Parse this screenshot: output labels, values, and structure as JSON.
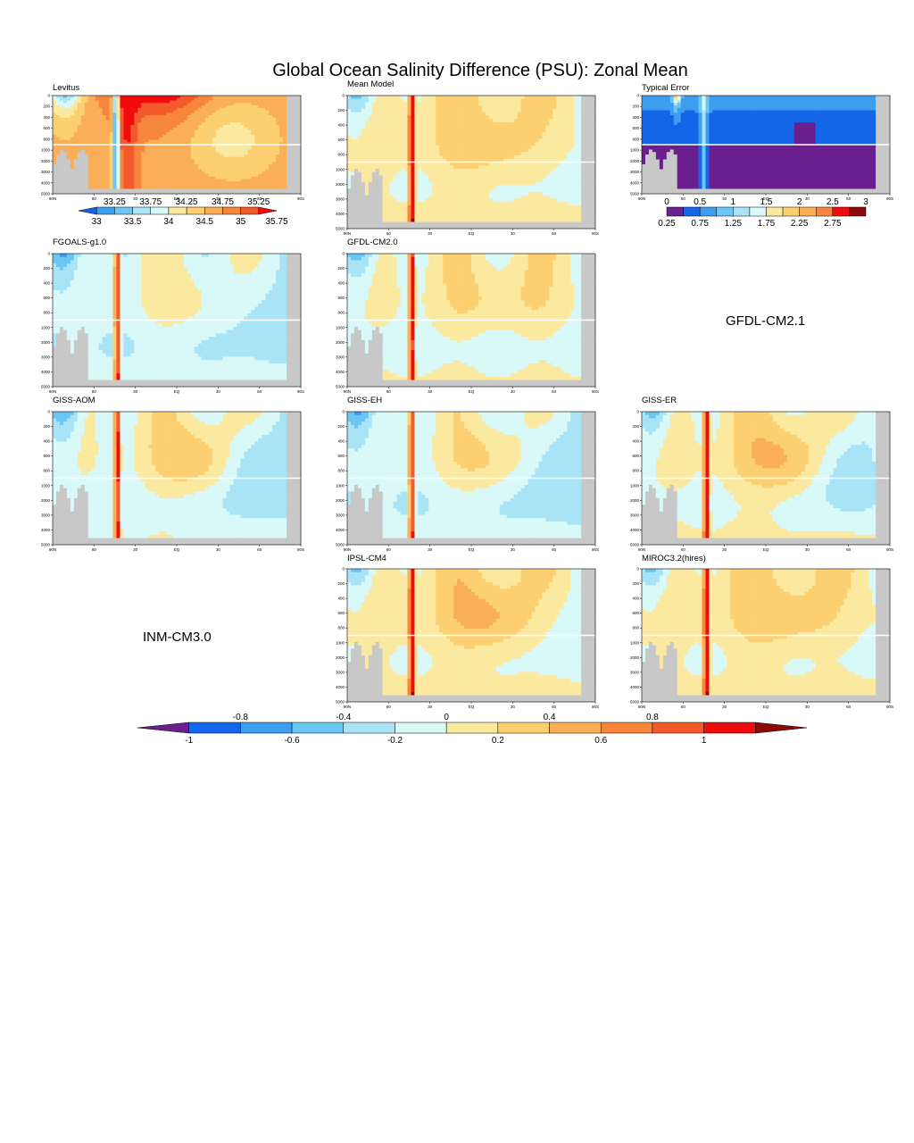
{
  "title": "Global Ocean Salinity Difference (PSU): Zonal Mean",
  "depth_ticks": [
    "0",
    "200",
    "400",
    "600",
    "800",
    "1000",
    "2000",
    "3000",
    "4000",
    "5000"
  ],
  "lat_ticks": [
    "90N",
    "60",
    "30",
    "EQ",
    "30",
    "60",
    "90S"
  ],
  "missing_panels": [
    "GFDL-CM2.1",
    "INM-CM3.0"
  ],
  "colors": {
    "land": "#c8c8c8",
    "diff_scale": [
      "#6a1f8e",
      "#1565e8",
      "#3d9ef0",
      "#6cc6f4",
      "#a8e4f6",
      "#d9f8f8",
      "#fbe9a0",
      "#fccf70",
      "#fbae58",
      "#f7863c",
      "#f25a2c",
      "#f00c0c",
      "#8c0a0a"
    ],
    "levitus_scale": [
      "#1565e8",
      "#3d9ef0",
      "#6cc6f4",
      "#a8e4f6",
      "#d9f8f8",
      "#fbe9a0",
      "#fccf70",
      "#fbae58",
      "#f7863c",
      "#f25a2c",
      "#f00c0c"
    ],
    "error_scale": [
      "#6a1f8e",
      "#1565e8",
      "#3d9ef0",
      "#6cc6f4",
      "#a8e4f6",
      "#d9f8f8",
      "#fbe9a0",
      "#fccf70",
      "#fbae58",
      "#f7863c",
      "#f00c0c",
      "#8c0a0a"
    ]
  },
  "panels": [
    {
      "id": "levitus",
      "label": "Levitus",
      "field": "levitus"
    },
    {
      "id": "mean-model",
      "label": "Mean Model",
      "field": "diff"
    },
    {
      "id": "typical-error",
      "label": "Typical Error",
      "field": "error"
    },
    {
      "id": "fgoals",
      "label": "FGOALS-g1.0",
      "field": "diff"
    },
    {
      "id": "gfdl-cm20",
      "label": "GFDL-CM2.0",
      "field": "diff"
    },
    {
      "id": "giss-aom",
      "label": "GISS-AOM",
      "field": "diff"
    },
    {
      "id": "giss-eh",
      "label": "GISS-EH",
      "field": "diff"
    },
    {
      "id": "giss-er",
      "label": "GISS-ER",
      "field": "diff"
    },
    {
      "id": "ipsl-cm4",
      "label": "IPSL-CM4",
      "field": "diff"
    },
    {
      "id": "miroc",
      "label": "MIROC3.2(hires)",
      "field": "diff"
    }
  ],
  "chart_data": [
    {
      "type": "heatmap",
      "title": "Levitus",
      "x": [
        "90N",
        "60",
        "30",
        "EQ",
        "30",
        "60",
        "90S"
      ],
      "y": [
        "0",
        "200",
        "400",
        "600",
        "800",
        "1000",
        "2000",
        "3000",
        "4000",
        "5000"
      ],
      "colorbar": {
        "levels_top": [
          "33.25",
          "33.75",
          "34.25",
          "34.75",
          "35.25"
        ],
        "levels_bottom": [
          "33",
          "33.5",
          "34",
          "34.5",
          "35",
          "35.75"
        ]
      }
    },
    {
      "type": "heatmap",
      "title": "Typical Error",
      "x": [
        "90N",
        "60",
        "30",
        "EQ",
        "30",
        "60",
        "90S"
      ],
      "y": [
        "0",
        "200",
        "400",
        "600",
        "800",
        "1000",
        "2000",
        "3000",
        "4000",
        "5000"
      ],
      "colorbar": {
        "levels_top": [
          "0",
          "0.5",
          "1",
          "1.5",
          "2",
          "2.5",
          "3"
        ],
        "levels_bottom": [
          "0.25",
          "0.75",
          "1.25",
          "1.75",
          "2.25",
          "2.75"
        ]
      }
    },
    {
      "type": "heatmap",
      "title": "Global Ocean Salinity Difference (PSU): Zonal Mean",
      "series": [
        {
          "name": "Mean Model"
        },
        {
          "name": "FGOALS-g1.0"
        },
        {
          "name": "GFDL-CM2.0"
        },
        {
          "name": "GISS-AOM"
        },
        {
          "name": "GISS-EH"
        },
        {
          "name": "GISS-ER"
        },
        {
          "name": "IPSL-CM4"
        },
        {
          "name": "MIROC3.2(hires)"
        }
      ],
      "x": [
        "90N",
        "60",
        "30",
        "EQ",
        "30",
        "60",
        "90S"
      ],
      "y": [
        "0",
        "200",
        "400",
        "600",
        "800",
        "1000",
        "2000",
        "3000",
        "4000",
        "5000"
      ],
      "colorbar": {
        "levels_top": [
          "-0.8",
          "-0.4",
          "0",
          "0.4",
          "0.8"
        ],
        "levels_bottom": [
          "-1",
          "-0.6",
          "-0.2",
          "0.2",
          "0.6",
          "1"
        ]
      }
    }
  ]
}
